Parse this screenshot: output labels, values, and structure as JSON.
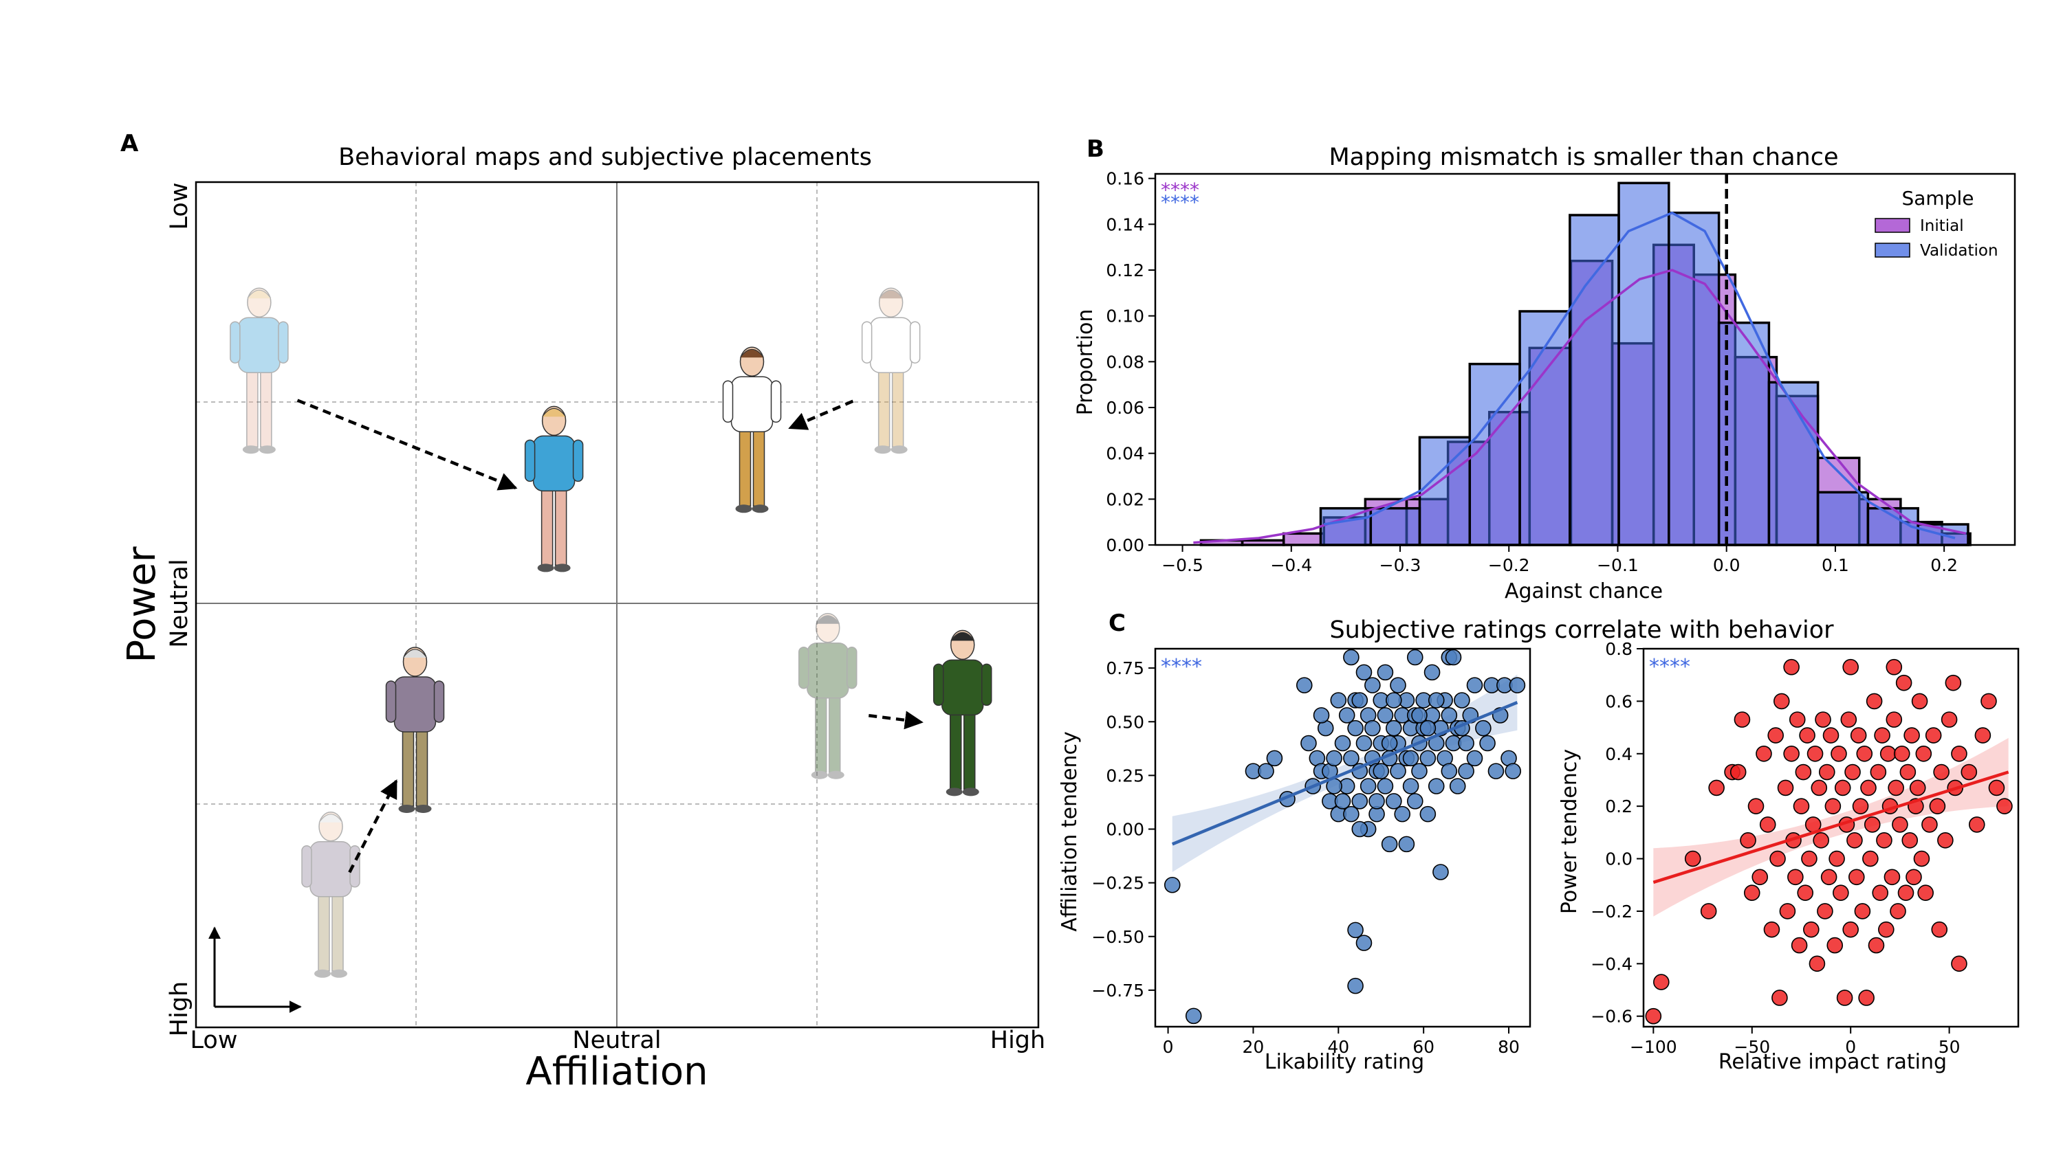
{
  "panel_a": {
    "letter": "A",
    "title": "Behavioral maps and subjective placements",
    "xlabel": "Affiliation",
    "ylabel": "Power",
    "x_ticks": [
      "Low",
      "Neutral",
      "High"
    ],
    "y_ticks": [
      "Low",
      "Neutral",
      "High"
    ],
    "characters": [
      {
        "name": "woman-blue-shirt",
        "from": [
          -0.85,
          0.52
        ],
        "to": [
          -0.15,
          0.24
        ],
        "shirt": "#3ea3d6",
        "pants": "#e8b6a6",
        "hair": "#e9c07a"
      },
      {
        "name": "man-white-shirt",
        "from": [
          0.65,
          0.52
        ],
        "to": [
          0.32,
          0.38
        ],
        "shirt": "#ffffff",
        "pants": "#d2a04c",
        "hair": "#7a4a2a"
      },
      {
        "name": "old-man-purple-sweater",
        "from": [
          -0.68,
          -0.72
        ],
        "to": [
          -0.48,
          -0.33
        ],
        "shirt": "#8e7f97",
        "pants": "#a8976a",
        "hair": "#dcdcdc"
      },
      {
        "name": "woman-green-suit",
        "from": [
          0.5,
          -0.25
        ],
        "to": [
          0.82,
          -0.29
        ],
        "shirt": "#2f5a22",
        "pants": "#2f5a22",
        "hair": "#2a2a2a"
      }
    ]
  },
  "panel_b": {
    "letter": "B",
    "title": "Mapping mismatch is smaller than chance",
    "xlabel": "Against chance",
    "ylabel": "Proportion",
    "significance": [
      "****",
      "****"
    ],
    "legend_title": "Sample",
    "legend_position": "top-right"
  },
  "panel_c": {
    "letter": "C",
    "title": "Subjective ratings correlate with behavior",
    "significance": "****"
  },
  "colors": {
    "initial": "#9b35c9",
    "validation": "#4169e1",
    "likability_points": "#4f80c0",
    "impact_points": "#ee2222",
    "likability_line": "#3465b0",
    "impact_line": "#e81e1e",
    "edge": "#000000"
  },
  "chart_data": [
    {
      "type": "bar",
      "panel": "B",
      "xlabel": "Against chance",
      "ylabel": "Proportion",
      "xlim": [
        -0.525,
        0.265
      ],
      "ylim": [
        0,
        0.162
      ],
      "x_ticks": [
        -0.5,
        -0.4,
        -0.3,
        -0.2,
        -0.1,
        0.0,
        0.1,
        0.2
      ],
      "y_ticks": [
        0.0,
        0.02,
        0.04,
        0.06,
        0.08,
        0.1,
        0.12,
        0.14,
        0.16
      ],
      "reference_line_x": 0.0,
      "grid": false,
      "legend_position": "top-right",
      "series": [
        {
          "name": "Initial",
          "bin_edges": [
            -0.483,
            -0.445,
            -0.407,
            -0.37,
            -0.332,
            -0.294,
            -0.256,
            -0.218,
            -0.181,
            -0.143,
            -0.105,
            -0.067,
            -0.03,
            0.008,
            0.046,
            0.084,
            0.122,
            0.16,
            0.198,
            0.224
          ],
          "values": [
            0.002,
            0.002,
            0.005,
            0.012,
            0.02,
            0.02,
            0.045,
            0.058,
            0.086,
            0.124,
            0.088,
            0.131,
            0.118,
            0.082,
            0.065,
            0.038,
            0.02,
            0.01,
            0.005
          ],
          "kde_x": [
            -0.49,
            -0.43,
            -0.38,
            -0.33,
            -0.28,
            -0.23,
            -0.18,
            -0.13,
            -0.08,
            -0.05,
            -0.02,
            0.02,
            0.07,
            0.12,
            0.17,
            0.22
          ],
          "kde_y": [
            0.001,
            0.003,
            0.007,
            0.015,
            0.022,
            0.04,
            0.068,
            0.098,
            0.116,
            0.12,
            0.114,
            0.089,
            0.056,
            0.027,
            0.01,
            0.005
          ]
        },
        {
          "name": "Validation",
          "bin_edges": [
            -0.373,
            -0.327,
            -0.282,
            -0.236,
            -0.19,
            -0.144,
            -0.099,
            -0.053,
            -0.007,
            0.039,
            0.084,
            0.13,
            0.176,
            0.222
          ],
          "values": [
            0.016,
            0.016,
            0.047,
            0.079,
            0.102,
            0.144,
            0.158,
            0.145,
            0.097,
            0.071,
            0.023,
            0.016,
            0.009
          ],
          "kde_x": [
            -0.37,
            -0.33,
            -0.28,
            -0.23,
            -0.18,
            -0.13,
            -0.09,
            -0.05,
            -0.02,
            0.01,
            0.05,
            0.09,
            0.13,
            0.17,
            0.21
          ],
          "kde_y": [
            0.009,
            0.012,
            0.024,
            0.047,
            0.077,
            0.113,
            0.137,
            0.145,
            0.137,
            0.11,
            0.07,
            0.038,
            0.019,
            0.008,
            0.003
          ]
        }
      ]
    },
    {
      "type": "scatter",
      "panel": "C-left",
      "xlabel": "Likability rating",
      "ylabel": "Affiliation tendency",
      "xlim": [
        -3,
        85
      ],
      "ylim": [
        -0.92,
        0.84
      ],
      "x_ticks": [
        0,
        20,
        40,
        60,
        80
      ],
      "y_ticks": [
        -0.75,
        -0.5,
        -0.25,
        0.0,
        0.25,
        0.5,
        0.75
      ],
      "grid": false,
      "regression": {
        "x": [
          1,
          82
        ],
        "y": [
          -0.07,
          0.59
        ]
      },
      "points": [
        [
          1,
          -0.26
        ],
        [
          6,
          -0.87
        ],
        [
          20,
          0.27
        ],
        [
          23,
          0.27
        ],
        [
          25,
          0.33
        ],
        [
          28,
          0.14
        ],
        [
          32,
          0.67
        ],
        [
          33,
          0.4
        ],
        [
          34,
          0.2
        ],
        [
          35,
          0.33
        ],
        [
          36,
          0.27
        ],
        [
          37,
          0.47
        ],
        [
          38,
          0.27
        ],
        [
          38,
          0.13
        ],
        [
          39,
          0.33
        ],
        [
          40,
          0.6
        ],
        [
          40,
          0.07
        ],
        [
          41,
          0.4
        ],
        [
          42,
          0.53
        ],
        [
          42,
          0.2
        ],
        [
          43,
          0.33
        ],
        [
          43,
          0.8
        ],
        [
          43,
          0.07
        ],
        [
          44,
          0.47
        ],
        [
          44,
          0.6
        ],
        [
          44,
          -0.47
        ],
        [
          44,
          -0.73
        ],
        [
          45,
          0.27
        ],
        [
          45,
          0.13
        ],
        [
          46,
          0.73
        ],
        [
          46,
          0.4
        ],
        [
          46,
          -0.53
        ],
        [
          47,
          0.53
        ],
        [
          47,
          0.2
        ],
        [
          47,
          0.0
        ],
        [
          48,
          0.67
        ],
        [
          48,
          0.33
        ],
        [
          48,
          0.47
        ],
        [
          49,
          0.27
        ],
        [
          49,
          0.07
        ],
        [
          49,
          0.13
        ],
        [
          50,
          0.6
        ],
        [
          50,
          0.4
        ],
        [
          51,
          0.73
        ],
        [
          51,
          0.53
        ],
        [
          51,
          0.2
        ],
        [
          52,
          0.33
        ],
        [
          52,
          -0.07
        ],
        [
          53,
          0.47
        ],
        [
          53,
          0.13
        ],
        [
          54,
          0.67
        ],
        [
          54,
          0.4
        ],
        [
          54,
          0.27
        ],
        [
          55,
          0.53
        ],
        [
          55,
          0.07
        ],
        [
          56,
          0.6
        ],
        [
          56,
          0.33
        ],
        [
          56,
          -0.07
        ],
        [
          57,
          0.47
        ],
        [
          57,
          0.2
        ],
        [
          58,
          0.8
        ],
        [
          58,
          0.53
        ],
        [
          58,
          0.13
        ],
        [
          59,
          0.4
        ],
        [
          59,
          0.27
        ],
        [
          60,
          0.6
        ],
        [
          60,
          0.47
        ],
        [
          61,
          0.33
        ],
        [
          61,
          0.07
        ],
        [
          62,
          0.73
        ],
        [
          62,
          0.53
        ],
        [
          63,
          0.4
        ],
        [
          63,
          0.2
        ],
        [
          64,
          0.47
        ],
        [
          64,
          -0.2
        ],
        [
          65,
          0.6
        ],
        [
          65,
          0.33
        ],
        [
          66,
          0.8
        ],
        [
          66,
          0.53
        ],
        [
          67,
          0.4
        ],
        [
          67,
          0.8
        ],
        [
          68,
          0.47
        ],
        [
          68,
          0.2
        ],
        [
          69,
          0.6
        ],
        [
          70,
          0.4
        ],
        [
          70,
          0.27
        ],
        [
          71,
          0.53
        ],
        [
          72,
          0.67
        ],
        [
          72,
          0.33
        ],
        [
          74,
          0.47
        ],
        [
          75,
          0.4
        ],
        [
          76,
          0.67
        ],
        [
          77,
          0.27
        ],
        [
          78,
          0.53
        ],
        [
          79,
          0.67
        ],
        [
          80,
          0.33
        ],
        [
          81,
          0.27
        ],
        [
          82,
          0.67
        ],
        [
          36,
          0.53
        ],
        [
          39,
          0.2
        ],
        [
          41,
          0.13
        ],
        [
          45,
          0.6
        ],
        [
          50,
          0.27
        ],
        [
          53,
          0.6
        ],
        [
          57,
          0.33
        ],
        [
          59,
          0.53
        ],
        [
          61,
          0.47
        ],
        [
          63,
          0.6
        ],
        [
          66,
          0.27
        ],
        [
          69,
          0.47
        ],
        [
          45,
          0.0
        ],
        [
          52,
          0.4
        ]
      ]
    },
    {
      "type": "scatter",
      "panel": "C-right",
      "xlabel": "Relative impact rating",
      "ylabel": "Power tendency",
      "xlim": [
        -105,
        85
      ],
      "ylim": [
        -0.64,
        0.8
      ],
      "x_ticks": [
        -100,
        -50,
        0,
        50
      ],
      "y_ticks": [
        -0.6,
        -0.4,
        -0.2,
        0.0,
        0.2,
        0.4,
        0.6,
        0.8
      ],
      "grid": false,
      "regression": {
        "x": [
          -100,
          80
        ],
        "y": [
          -0.09,
          0.33
        ]
      },
      "points": [
        [
          -100,
          -0.6
        ],
        [
          -96,
          -0.47
        ],
        [
          -72,
          -0.2
        ],
        [
          -68,
          0.27
        ],
        [
          -60,
          0.33
        ],
        [
          -57,
          0.33
        ],
        [
          -55,
          0.53
        ],
        [
          -52,
          0.07
        ],
        [
          -50,
          -0.13
        ],
        [
          -48,
          0.2
        ],
        [
          -46,
          -0.07
        ],
        [
          -44,
          0.4
        ],
        [
          -42,
          0.13
        ],
        [
          -40,
          -0.27
        ],
        [
          -38,
          0.47
        ],
        [
          -37,
          0.0
        ],
        [
          -36,
          -0.53
        ],
        [
          -35,
          0.6
        ],
        [
          -33,
          0.27
        ],
        [
          -32,
          -0.2
        ],
        [
          -30,
          0.4
        ],
        [
          -29,
          0.07
        ],
        [
          -28,
          -0.07
        ],
        [
          -27,
          0.53
        ],
        [
          -26,
          -0.33
        ],
        [
          -25,
          0.2
        ],
        [
          -24,
          0.33
        ],
        [
          -23,
          -0.13
        ],
        [
          -22,
          0.47
        ],
        [
          -21,
          0.0
        ],
        [
          -20,
          -0.27
        ],
        [
          -19,
          0.13
        ],
        [
          -18,
          0.4
        ],
        [
          -17,
          -0.4
        ],
        [
          -16,
          0.27
        ],
        [
          -15,
          0.07
        ],
        [
          -14,
          0.53
        ],
        [
          -13,
          -0.2
        ],
        [
          -12,
          0.33
        ],
        [
          -11,
          -0.07
        ],
        [
          -10,
          0.47
        ],
        [
          -9,
          0.2
        ],
        [
          -8,
          -0.33
        ],
        [
          -7,
          0.0
        ],
        [
          -6,
          0.4
        ],
        [
          -5,
          -0.13
        ],
        [
          -4,
          0.27
        ],
        [
          -3,
          -0.53
        ],
        [
          -2,
          0.13
        ],
        [
          -1,
          0.53
        ],
        [
          0,
          -0.27
        ],
        [
          1,
          0.33
        ],
        [
          2,
          0.07
        ],
        [
          3,
          -0.07
        ],
        [
          4,
          0.47
        ],
        [
          5,
          0.2
        ],
        [
          6,
          -0.2
        ],
        [
          7,
          0.4
        ],
        [
          8,
          -0.53
        ],
        [
          9,
          0.27
        ],
        [
          10,
          0.0
        ],
        [
          11,
          0.13
        ],
        [
          12,
          0.6
        ],
        [
          13,
          -0.33
        ],
        [
          14,
          0.33
        ],
        [
          15,
          -0.13
        ],
        [
          16,
          0.47
        ],
        [
          17,
          0.07
        ],
        [
          18,
          -0.27
        ],
        [
          19,
          0.4
        ],
        [
          20,
          0.2
        ],
        [
          21,
          -0.07
        ],
        [
          22,
          0.53
        ],
        [
          23,
          0.27
        ],
        [
          24,
          -0.2
        ],
        [
          25,
          0.13
        ],
        [
          26,
          0.4
        ],
        [
          27,
          0.67
        ],
        [
          28,
          -0.13
        ],
        [
          29,
          0.33
        ],
        [
          30,
          0.07
        ],
        [
          31,
          0.47
        ],
        [
          32,
          -0.07
        ],
        [
          33,
          0.2
        ],
        [
          34,
          0.27
        ],
        [
          35,
          0.6
        ],
        [
          36,
          0.0
        ],
        [
          37,
          0.4
        ],
        [
          38,
          -0.13
        ],
        [
          40,
          0.13
        ],
        [
          42,
          0.47
        ],
        [
          44,
          0.2
        ],
        [
          45,
          -0.27
        ],
        [
          46,
          0.33
        ],
        [
          48,
          0.07
        ],
        [
          50,
          0.53
        ],
        [
          52,
          0.67
        ],
        [
          53,
          0.27
        ],
        [
          55,
          -0.4
        ],
        [
          55,
          0.4
        ],
        [
          60,
          0.33
        ],
        [
          64,
          0.13
        ],
        [
          67,
          0.47
        ],
        [
          70,
          0.6
        ],
        [
          74,
          0.27
        ],
        [
          78,
          0.2
        ],
        [
          -30,
          0.73
        ],
        [
          0,
          0.73
        ],
        [
          22,
          0.73
        ],
        [
          -80,
          0.0
        ]
      ]
    }
  ]
}
